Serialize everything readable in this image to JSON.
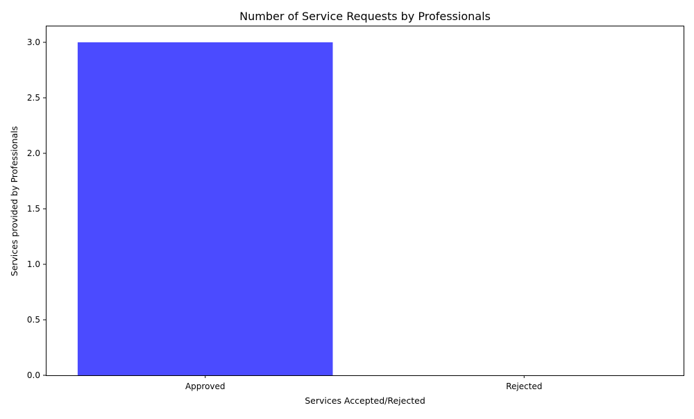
{
  "chart_data": {
    "type": "bar",
    "title": "Number of Service Requests by Professionals",
    "xlabel": "Services Accepted/Rejected",
    "ylabel": "Services provided by Professionals",
    "categories": [
      "Approved",
      "Rejected"
    ],
    "values": [
      3,
      0
    ],
    "ylim": [
      0,
      3.15
    ],
    "yticks": [
      0.0,
      0.5,
      1.0,
      1.5,
      2.0,
      2.5,
      3.0
    ],
    "ytick_labels": [
      "0.0",
      "0.5",
      "1.0",
      "1.5",
      "2.0",
      "2.5",
      "3.0"
    ],
    "bar_color": "#4b4bff",
    "grid": false,
    "legend": false
  }
}
